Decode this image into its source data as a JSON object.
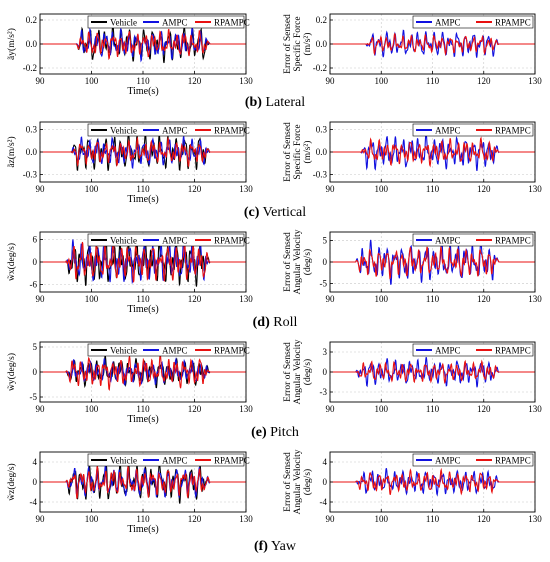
{
  "captions": [
    {
      "letter": "(b)",
      "text": "Lateral"
    },
    {
      "letter": "(c)",
      "text": "Vertical"
    },
    {
      "letter": "(d)",
      "text": "Roll"
    },
    {
      "letter": "(e)",
      "text": "Pitch"
    },
    {
      "letter": "(f)",
      "text": "Yaw"
    }
  ],
  "colors": {
    "Vehicle": "#000000",
    "AMPC": "#1010e0",
    "RPAMPC": "#e81010"
  },
  "chart_data": [
    {
      "id": "b-left",
      "type": "line",
      "xlabel": "Time(s)",
      "ylabel": "ãy(m/s²)",
      "xlim": [
        90,
        130
      ],
      "ylim": [
        -0.25,
        0.25
      ],
      "xticks": [
        90,
        100,
        110,
        120,
        130
      ],
      "yticks": [
        -0.2,
        0,
        0.2
      ],
      "yticklabels": [
        "-0.2",
        "0.0",
        "0.2"
      ],
      "grid": true,
      "legend": "top-right",
      "series": [
        {
          "name": "Vehicle",
          "active": [
            97,
            123
          ],
          "amp": 0.13,
          "seed": 11
        },
        {
          "name": "AMPC",
          "active": [
            97,
            123
          ],
          "amp": 0.11,
          "seed": 23
        },
        {
          "name": "RPAMPC",
          "active": [
            97,
            123
          ],
          "amp": 0.1,
          "seed": 37
        }
      ]
    },
    {
      "id": "b-right",
      "type": "line",
      "xlabel": "",
      "ylabel": "Error of Sensed Specific Force (m/s²)",
      "xlim": [
        90,
        130
      ],
      "ylim": [
        -0.25,
        0.25
      ],
      "xticks": [
        90,
        100,
        110,
        120,
        130
      ],
      "yticks": [
        -0.2,
        0,
        0.2
      ],
      "yticklabels": [
        "-0.2",
        "0.0",
        "0.2"
      ],
      "grid": true,
      "legend": "top-right",
      "series": [
        {
          "name": "AMPC",
          "active": [
            97,
            123
          ],
          "amp": 0.1,
          "seed": 41
        },
        {
          "name": "RPAMPC",
          "active": [
            97,
            123
          ],
          "amp": 0.07,
          "seed": 53
        }
      ]
    },
    {
      "id": "c-left",
      "type": "line",
      "xlabel": "Time(s)",
      "ylabel": "ãz(m/s²)",
      "xlim": [
        90,
        130
      ],
      "ylim": [
        -0.4,
        0.4
      ],
      "xticks": [
        90,
        100,
        110,
        120,
        130
      ],
      "yticks": [
        -0.3,
        0,
        0.3
      ],
      "yticklabels": [
        "-0.3",
        "0.0",
        "0.3"
      ],
      "grid": true,
      "legend": "top-right",
      "series": [
        {
          "name": "Vehicle",
          "active": [
            96,
            123
          ],
          "amp": 0.22,
          "seed": 61
        },
        {
          "name": "AMPC",
          "active": [
            96,
            123
          ],
          "amp": 0.17,
          "seed": 67
        },
        {
          "name": "RPAMPC",
          "active": [
            96,
            123
          ],
          "amp": 0.15,
          "seed": 71
        }
      ]
    },
    {
      "id": "c-right",
      "type": "line",
      "xlabel": "",
      "ylabel": "Error of Sensed Specific Force (m/s²)",
      "xlim": [
        90,
        130
      ],
      "ylim": [
        -0.4,
        0.4
      ],
      "xticks": [
        90,
        100,
        110,
        120,
        130
      ],
      "yticks": [
        -0.3,
        0,
        0.3
      ],
      "yticklabels": [
        "-0.3",
        "0.0",
        "0.3"
      ],
      "grid": true,
      "legend": "top-right",
      "series": [
        {
          "name": "AMPC",
          "active": [
            96,
            123
          ],
          "amp": 0.2,
          "seed": 73
        },
        {
          "name": "RPAMPC",
          "active": [
            96,
            123
          ],
          "amp": 0.15,
          "seed": 79
        }
      ]
    },
    {
      "id": "d-left",
      "type": "line",
      "xlabel": "Time(s)",
      "ylabel": "w̃x(deg/s)",
      "xlim": [
        90,
        130
      ],
      "ylim": [
        -8,
        8
      ],
      "xticks": [
        90,
        100,
        110,
        120,
        130
      ],
      "yticks": [
        -6,
        0,
        6
      ],
      "yticklabels": [
        "-6",
        "0",
        "6"
      ],
      "grid": true,
      "legend": "top-right",
      "series": [
        {
          "name": "Vehicle",
          "active": [
            95,
            123
          ],
          "amp": 5.5,
          "seed": 83
        },
        {
          "name": "AMPC",
          "active": [
            95,
            123
          ],
          "amp": 5.0,
          "seed": 89
        },
        {
          "name": "RPAMPC",
          "active": [
            95,
            123
          ],
          "amp": 4.8,
          "seed": 97
        }
      ]
    },
    {
      "id": "d-right",
      "type": "line",
      "xlabel": "",
      "ylabel": "Error of Sensed Angular Velocity (deg/s)",
      "xlim": [
        90,
        130
      ],
      "ylim": [
        -7,
        7
      ],
      "xticks": [
        90,
        100,
        110,
        120,
        130
      ],
      "yticks": [
        -5,
        0,
        5
      ],
      "yticklabels": [
        "-5",
        "0",
        "5"
      ],
      "grid": true,
      "legend": "top-right",
      "series": [
        {
          "name": "AMPC",
          "active": [
            95,
            123
          ],
          "amp": 4.2,
          "seed": 101
        },
        {
          "name": "RPAMPC",
          "active": [
            95,
            123
          ],
          "amp": 3.2,
          "seed": 103
        }
      ]
    },
    {
      "id": "e-left",
      "type": "line",
      "xlabel": "Time(s)",
      "ylabel": "w̃y(deg/s)",
      "xlim": [
        90,
        130
      ],
      "ylim": [
        -6,
        6
      ],
      "xticks": [
        90,
        100,
        110,
        120,
        130
      ],
      "yticks": [
        -5,
        0,
        5
      ],
      "yticklabels": [
        "-5",
        "0",
        "5"
      ],
      "grid": true,
      "legend": "top-right",
      "series": [
        {
          "name": "Vehicle",
          "active": [
            95,
            123
          ],
          "amp": 2.5,
          "seed": 107
        },
        {
          "name": "AMPC",
          "active": [
            95,
            123
          ],
          "amp": 2.2,
          "seed": 109
        },
        {
          "name": "RPAMPC",
          "active": [
            95,
            123
          ],
          "amp": 2.8,
          "seed": 113
        }
      ]
    },
    {
      "id": "e-right",
      "type": "line",
      "xlabel": "",
      "ylabel": "Error of Sensed Angular Velocity (deg/s)",
      "xlim": [
        90,
        130
      ],
      "ylim": [
        -4.5,
        4.5
      ],
      "xticks": [
        90,
        100,
        110,
        120,
        130
      ],
      "yticks": [
        -3,
        0,
        3
      ],
      "yticklabels": [
        "-3",
        "0",
        "3"
      ],
      "grid": true,
      "legend": "top-right",
      "series": [
        {
          "name": "AMPC",
          "active": [
            95,
            123
          ],
          "amp": 1.8,
          "seed": 127
        },
        {
          "name": "RPAMPC",
          "active": [
            95,
            123
          ],
          "amp": 1.4,
          "seed": 131
        }
      ]
    },
    {
      "id": "f-left",
      "type": "line",
      "xlabel": "Time(s)",
      "ylabel": "w̃z(deg/s)",
      "xlim": [
        90,
        130
      ],
      "ylim": [
        -6,
        6
      ],
      "xticks": [
        90,
        100,
        110,
        120,
        130
      ],
      "yticks": [
        -4,
        0,
        4
      ],
      "yticklabels": [
        "-4",
        "0",
        "4"
      ],
      "grid": true,
      "legend": "top-right",
      "series": [
        {
          "name": "Vehicle",
          "active": [
            95,
            123
          ],
          "amp": 3.5,
          "seed": 137
        },
        {
          "name": "AMPC",
          "active": [
            95,
            123
          ],
          "amp": 2.8,
          "seed": 139
        },
        {
          "name": "RPAMPC",
          "active": [
            95,
            123
          ],
          "amp": 2.6,
          "seed": 149
        }
      ]
    },
    {
      "id": "f-right",
      "type": "line",
      "xlabel": "",
      "ylabel": "Error of Sensed Angular Velocity (deg/s)",
      "xlim": [
        90,
        130
      ],
      "ylim": [
        -6,
        6
      ],
      "xticks": [
        90,
        100,
        110,
        120,
        130
      ],
      "yticks": [
        -4,
        0,
        4
      ],
      "yticklabels": [
        "-4",
        "0",
        "4"
      ],
      "grid": true,
      "legend": "top-right",
      "series": [
        {
          "name": "AMPC",
          "active": [
            95,
            123
          ],
          "amp": 2.2,
          "seed": 151
        },
        {
          "name": "RPAMPC",
          "active": [
            95,
            123
          ],
          "amp": 2.0,
          "seed": 157
        }
      ]
    }
  ]
}
